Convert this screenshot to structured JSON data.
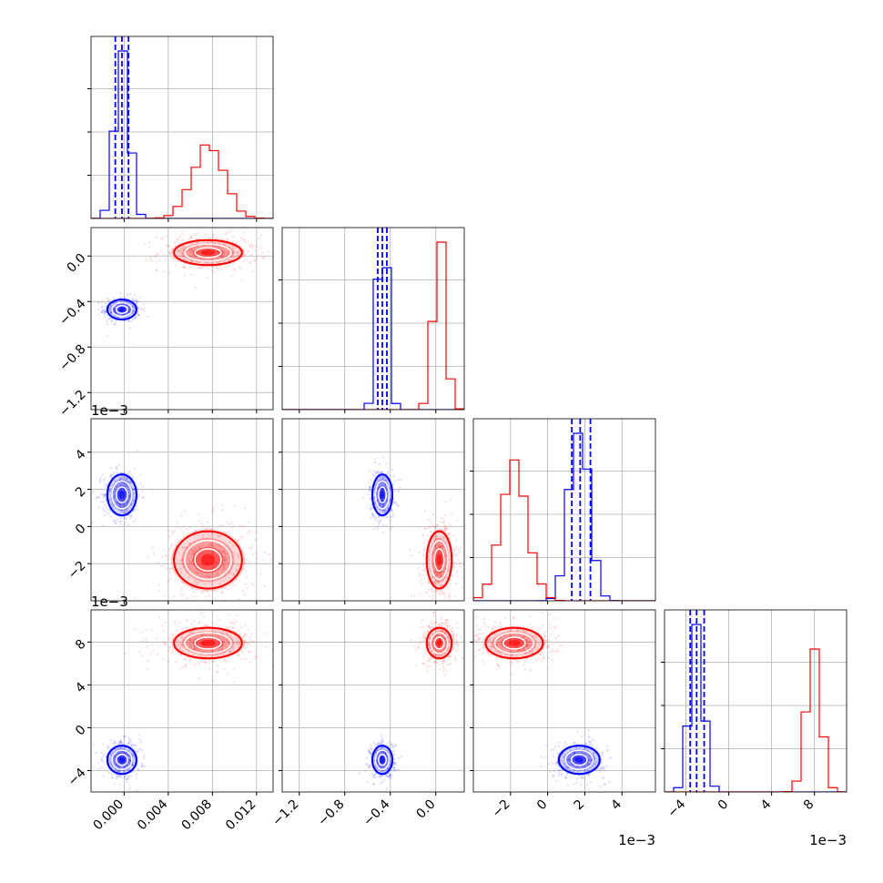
{
  "chart_data": {
    "type": "corner",
    "parameters": 4,
    "exponent_label": "1e−3",
    "axes": {
      "p0": {
        "range": [
          -0.003,
          0.0135
        ],
        "ticks": [
          0.0,
          0.004,
          0.008,
          0.012
        ],
        "tick_labels": [
          "0.000",
          "0.004",
          "0.008",
          "0.012"
        ]
      },
      "p1": {
        "range": [
          -1.35,
          0.25
        ],
        "ticks": [
          -1.2,
          -0.8,
          -0.4,
          0.0
        ],
        "tick_labels": [
          "−1.2",
          "−0.8",
          "−0.4",
          "0.0"
        ]
      },
      "p2": {
        "range": [
          -4.0,
          5.8
        ],
        "ticks": [
          -2,
          0,
          2,
          4
        ],
        "tick_labels": [
          "−2",
          "0",
          "2",
          "4"
        ]
      },
      "p3": {
        "range": [
          -6.0,
          11.0
        ],
        "ticks": [
          -4,
          0,
          4,
          8
        ],
        "tick_labels": [
          "−4",
          "0",
          "4",
          "8"
        ]
      }
    },
    "series": [
      {
        "color": "#0000ff",
        "means": [
          -0.0002,
          -0.47,
          1.7,
          -3.0
        ],
        "sigmas": [
          0.0006,
          0.04,
          0.5,
          0.6
        ],
        "quantiles": [
          [
            -0.0008,
            -0.0002,
            0.0004
          ],
          [
            -0.51,
            -0.47,
            -0.43
          ],
          [
            1.3,
            1.75,
            2.3
          ],
          [
            -3.6,
            -3.0,
            -2.3
          ]
        ]
      },
      {
        "color": "#ff0000",
        "means": [
          0.0076,
          0.03,
          -1.8,
          7.9
        ],
        "sigmas": [
          0.0014,
          0.05,
          0.7,
          0.65
        ],
        "quantiles": []
      }
    ],
    "grid": true
  }
}
